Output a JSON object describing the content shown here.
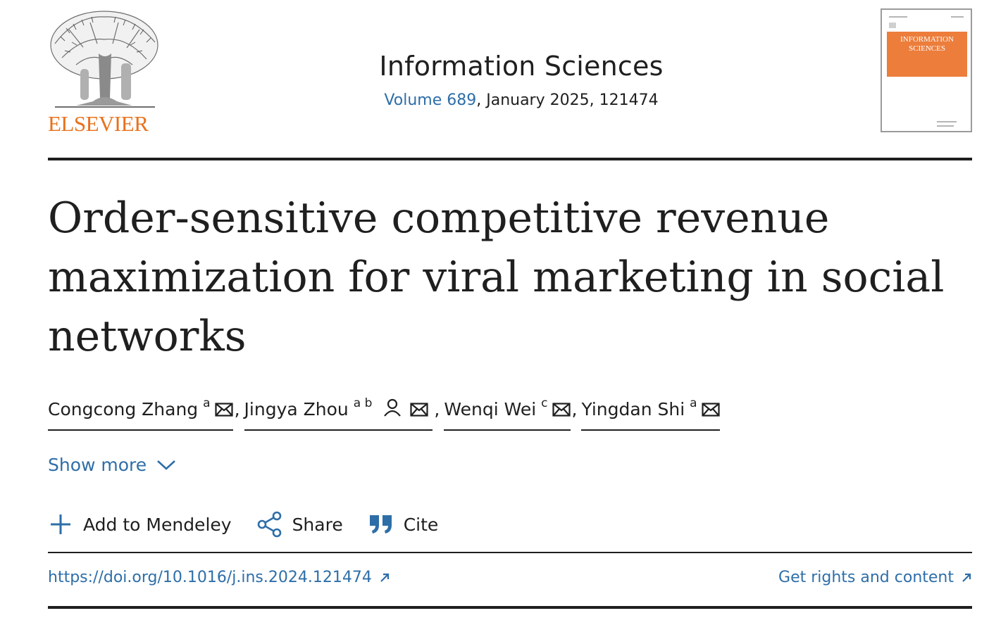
{
  "publisher": {
    "name": "ELSEVIER",
    "logo_icon": "elsevier-tree-logo",
    "brand_color": "#e9711c"
  },
  "journal": {
    "title": "Information Sciences",
    "volume_link": "Volume 689",
    "issue_details": ", January 2025, 121474",
    "cover": {
      "title_line1": "INFORMATION",
      "title_line2": "SCIENCES",
      "accent": "#ec7d3b"
    }
  },
  "article": {
    "title": "Order-sensitive competitive revenue maximization for viral marketing in social networks"
  },
  "authors": [
    {
      "name": "Congcong Zhang",
      "affiliations": "a",
      "icons": [
        "mail-icon"
      ]
    },
    {
      "name": "Jingya Zhou",
      "affiliations": "a b",
      "icons": [
        "person-icon",
        "mail-icon"
      ]
    },
    {
      "name": "Wenqi Wei",
      "affiliations": "c",
      "icons": [
        "mail-icon"
      ]
    },
    {
      "name": "Yingdan Shi",
      "affiliations": "a",
      "icons": [
        "mail-icon"
      ]
    }
  ],
  "author_separator": ",",
  "show_more": {
    "label": "Show more",
    "icon": "chevron-down-icon"
  },
  "actions": [
    {
      "label": "Add to Mendeley",
      "icon": "plus-icon"
    },
    {
      "label": "Share",
      "icon": "share-icon"
    },
    {
      "label": "Cite",
      "icon": "quote-icon"
    }
  ],
  "links": {
    "doi": "https://doi.org/10.1016/j.ins.2024.121474",
    "rights": "Get rights and content"
  },
  "colors": {
    "link": "#2e6ea8",
    "text": "#1f1f1f"
  }
}
